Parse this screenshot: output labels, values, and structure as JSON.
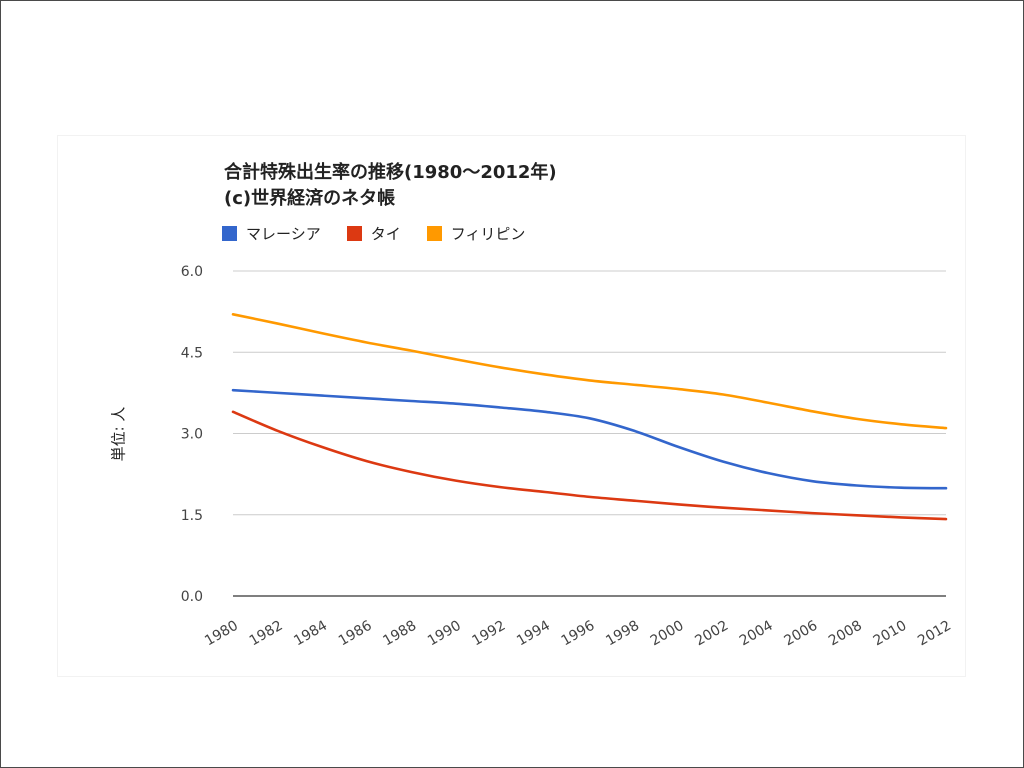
{
  "chart_data": {
    "type": "line",
    "title_lines": [
      "合計特殊出生率の推移(1980～2012年)",
      "(c)世界経済のネタ帳"
    ],
    "ylabel": "単位: 人",
    "xlabel": "",
    "ylim": [
      0,
      6
    ],
    "yticks": [
      "0.0",
      "1.5",
      "3.0",
      "4.5",
      "6.0"
    ],
    "x": [
      1980,
      1982,
      1984,
      1986,
      1988,
      1990,
      1992,
      1994,
      1996,
      1998,
      2000,
      2002,
      2004,
      2006,
      2008,
      2010,
      2012
    ],
    "xtick_labels": [
      "1980",
      "1982",
      "1984",
      "1986",
      "1988",
      "1990",
      "1992",
      "1994",
      "1996",
      "1998",
      "2000",
      "2002",
      "2004",
      "2006",
      "2008",
      "2010",
      "2012"
    ],
    "grid": true,
    "legend_position": "top-left",
    "series": [
      {
        "name": "マレーシア",
        "color": "#3366cc",
        "values": [
          3.8,
          3.75,
          3.7,
          3.65,
          3.6,
          3.55,
          3.48,
          3.4,
          3.28,
          3.05,
          2.75,
          2.48,
          2.27,
          2.12,
          2.04,
          2.0,
          1.99
        ]
      },
      {
        "name": "タイ",
        "color": "#dc3912",
        "values": [
          3.4,
          3.05,
          2.75,
          2.49,
          2.29,
          2.13,
          2.01,
          1.92,
          1.83,
          1.76,
          1.69,
          1.63,
          1.58,
          1.53,
          1.49,
          1.45,
          1.42
        ]
      },
      {
        "name": "フィリピン",
        "color": "#ff9900",
        "values": [
          5.2,
          5.03,
          4.85,
          4.68,
          4.53,
          4.37,
          4.22,
          4.09,
          3.98,
          3.9,
          3.82,
          3.72,
          3.57,
          3.41,
          3.27,
          3.17,
          3.1
        ]
      }
    ]
  }
}
